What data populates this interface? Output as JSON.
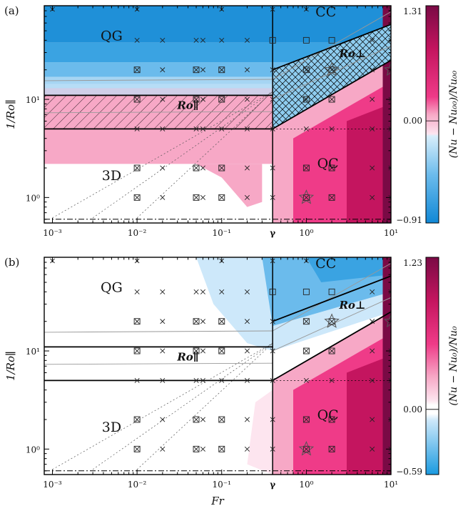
{
  "panels": [
    {
      "letter": "(a)",
      "colorbar": {
        "max": "1.31",
        "mid": "0.00",
        "min": "−0.91",
        "label": "(Nu − Nu₀₀)/Nu₀₀"
      },
      "regions": {
        "qg": "QG",
        "cc": "CC",
        "td": "3D",
        "qc": "QC",
        "ro_par": "Ro∥",
        "ro_perp": "Ro⊥"
      }
    },
    {
      "letter": "(b)",
      "colorbar": {
        "max": "1.23",
        "mid": "0.00",
        "min": "−0.59",
        "label": "(Nu − Nu₀)/Nu₀"
      },
      "regions": {
        "qg": "QG",
        "cc": "CC",
        "td": "3D",
        "qc": "QC",
        "ro_par": "Ro∥",
        "ro_perp": "Ro⊥"
      }
    }
  ],
  "axes": {
    "xlabel": "Fr",
    "ylabel": "1/Ro∥",
    "x_ticks": [
      "10⁻³",
      "10⁻²",
      "10⁻¹",
      "γ",
      "10⁰",
      "10¹"
    ],
    "y_ticks": [
      "10⁰",
      "10¹"
    ]
  },
  "chart_data": {
    "type": "heatmap",
    "xscale": "log",
    "yscale": "log",
    "xlim": [
      0.0008,
      10
    ],
    "ylim": [
      0.55,
      90
    ],
    "gamma": 0.4,
    "regime_lines": {
      "horizontal": [
        5,
        11
      ],
      "threshold_y": 0.6
    },
    "sim_points_x": [
      0.01,
      0.02,
      0.05,
      0.06,
      0.1,
      0.2,
      0.4,
      1,
      2,
      6,
      10
    ],
    "sim_points_y": [
      1,
      2,
      5,
      10,
      20,
      40
    ],
    "colorbar_ranges": [
      [
        -0.91,
        1.31
      ],
      [
        -0.59,
        1.23
      ]
    ]
  }
}
